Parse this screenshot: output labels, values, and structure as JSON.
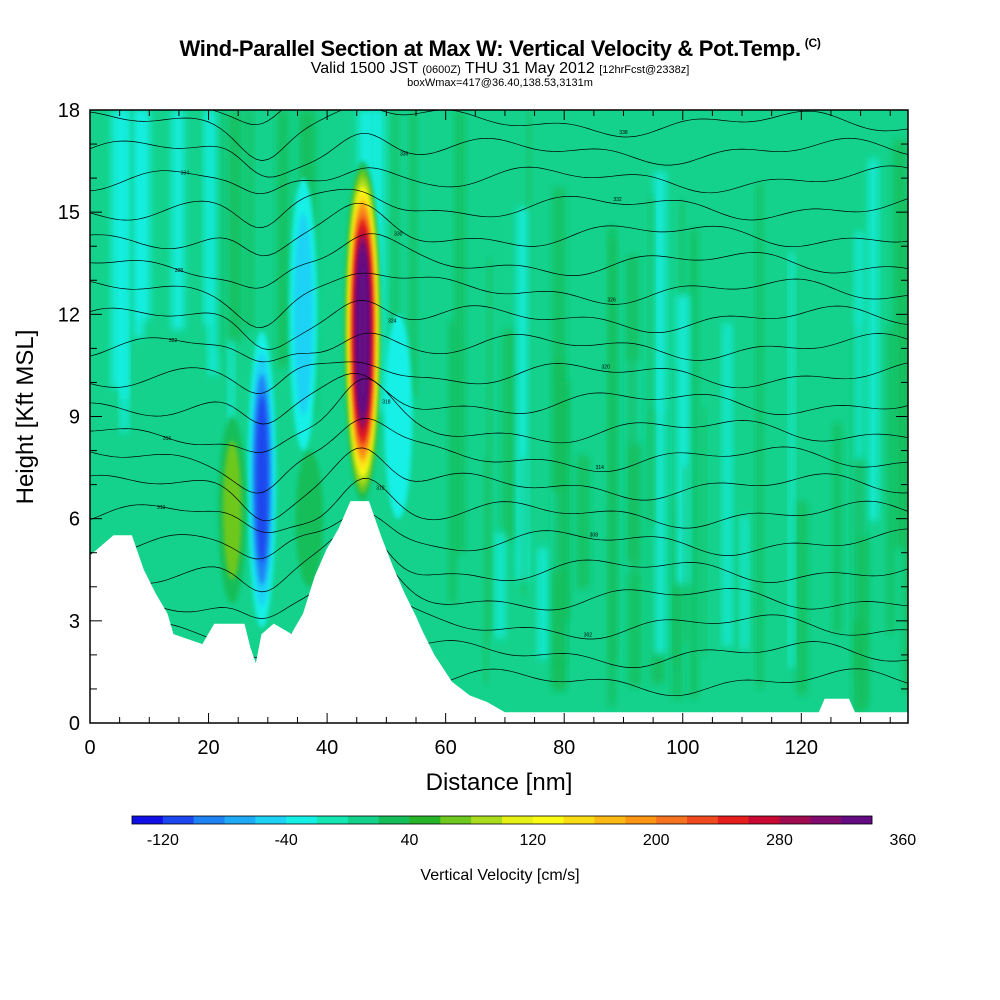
{
  "header": {
    "title": "Wind-Parallel Section at Max W: Vertical Velocity & Pot.Temp.",
    "copyright": "(C)",
    "valid_a": "Valid 1500 JST",
    "valid_b": "(0600Z)",
    "valid_c": "THU 31 May 2012",
    "valid_d": "[12hrFcst@2338z]",
    "box": "boxWmax=417@36.40,138.53,3131m"
  },
  "chart_data": {
    "type": "heatmap",
    "xlabel": "Distance [nm]",
    "ylabel": "Height [Kft MSL]",
    "xlim": [
      0,
      138
    ],
    "ylim": [
      0,
      18
    ],
    "x_ticks": [
      0,
      20,
      40,
      60,
      80,
      100,
      120
    ],
    "y_ticks": [
      0,
      3,
      6,
      9,
      12,
      15,
      18
    ],
    "colorbar": {
      "label": "Vertical Velocity [cm/s]",
      "ticks": [
        -120,
        -40,
        40,
        120,
        200,
        280,
        360
      ],
      "colors": [
        "#1010e6",
        "#1c46ee",
        "#1e82f5",
        "#1eaaf5",
        "#1ed2f5",
        "#14f0e6",
        "#14e6b4",
        "#14d28c",
        "#14be5a",
        "#28b428",
        "#6ec81e",
        "#aadc1e",
        "#e6f014",
        "#fafa14",
        "#fadc14",
        "#fab914",
        "#fa9614",
        "#f5731e",
        "#f04b1e",
        "#e61e1e",
        "#c80a32",
        "#a00a50",
        "#820a6e",
        "#640a82"
      ]
    },
    "w_features": [
      {
        "x": 46,
        "z_bottom": 6.5,
        "z_top": 16.5,
        "peak": 417,
        "sign": "updraft"
      },
      {
        "x": 29,
        "z_bottom": 2.8,
        "z_top": 11.5,
        "peak": -120,
        "sign": "downdraft"
      },
      {
        "x": 24,
        "z_bottom": 3.5,
        "z_top": 9,
        "peak": 60,
        "sign": "updraft"
      },
      {
        "x": 37,
        "z_bottom": 4,
        "z_top": 8,
        "peak": 50,
        "sign": "updraft"
      },
      {
        "x": 36,
        "z_bottom": 8,
        "z_top": 16,
        "peak": -70,
        "sign": "downdraft"
      },
      {
        "x": 52,
        "z_bottom": 6,
        "z_top": 12,
        "peak": -50,
        "sign": "downdraft"
      }
    ],
    "theta_labels": [
      "298",
      "300",
      "302",
      "304",
      "306",
      "308",
      "310",
      "312",
      "314",
      "316",
      "318",
      "320",
      "322",
      "324",
      "326",
      "328",
      "330",
      "332",
      "334",
      "336",
      "338",
      "340"
    ],
    "terrain_kft": [
      [
        0,
        4.9
      ],
      [
        2,
        5.2
      ],
      [
        4,
        5.5
      ],
      [
        7,
        5.5
      ],
      [
        9,
        4.5
      ],
      [
        11,
        3.8
      ],
      [
        13,
        3.2
      ],
      [
        14,
        2.6
      ],
      [
        19,
        2.3
      ],
      [
        21,
        2.9
      ],
      [
        26,
        2.9
      ],
      [
        27,
        2.2
      ],
      [
        28,
        1.7
      ],
      [
        29,
        2.6
      ],
      [
        31,
        2.9
      ],
      [
        34,
        2.6
      ],
      [
        36,
        3.2
      ],
      [
        38,
        4.3
      ],
      [
        40,
        5.1
      ],
      [
        42,
        5.7
      ],
      [
        44,
        6.5
      ],
      [
        47,
        6.5
      ],
      [
        49,
        5.5
      ],
      [
        51,
        4.6
      ],
      [
        53,
        3.8
      ],
      [
        55,
        3.1
      ],
      [
        56,
        2.7
      ],
      [
        58,
        2.0
      ],
      [
        61,
        1.2
      ],
      [
        64,
        0.8
      ],
      [
        67,
        0.6
      ],
      [
        70,
        0.3
      ],
      [
        123,
        0.3
      ],
      [
        124,
        0.7
      ],
      [
        128,
        0.7
      ],
      [
        129,
        0.3
      ],
      [
        138,
        0.3
      ]
    ]
  }
}
